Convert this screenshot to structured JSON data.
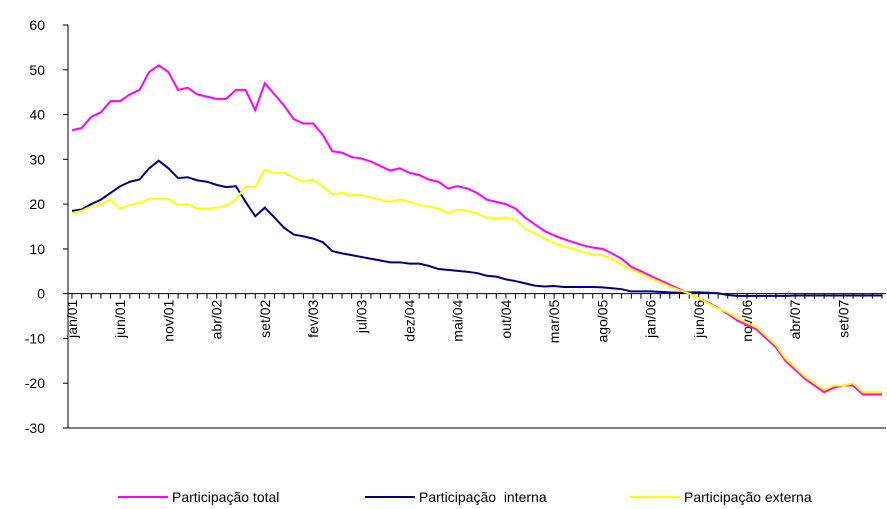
{
  "chart_data": {
    "type": "line",
    "categories": [
      "jan/01",
      null,
      null,
      null,
      null,
      "jun/01",
      null,
      null,
      null,
      null,
      "nov/01",
      null,
      null,
      null,
      null,
      "abr/02",
      null,
      null,
      null,
      null,
      "set/02",
      null,
      null,
      null,
      null,
      "fev/03",
      null,
      null,
      null,
      null,
      "jul/03",
      null,
      null,
      null,
      null,
      "dez/04",
      null,
      null,
      null,
      null,
      "mai/04",
      null,
      null,
      null,
      null,
      "out/04",
      null,
      null,
      null,
      null,
      "mar/05",
      null,
      null,
      null,
      null,
      "ago/05",
      null,
      null,
      null,
      null,
      "jan/06",
      null,
      null,
      null,
      null,
      "jun/06",
      null,
      null,
      null,
      null,
      "nov/06",
      null,
      null,
      null,
      null,
      "abr/07",
      null,
      null,
      null,
      null,
      "set/07",
      null,
      null,
      null,
      null
    ],
    "series": [
      {
        "name": "Participação total",
        "color": "#ff00ff",
        "values": [
          36.5,
          37,
          39.5,
          40.5,
          43,
          43,
          44.5,
          45.5,
          49.5,
          51,
          49.5,
          45.5,
          46,
          44.5,
          44,
          43.5,
          43.5,
          45.5,
          45.5,
          41,
          47,
          44.5,
          42,
          39,
          38,
          38,
          35.5,
          31.8,
          31.5,
          30.5,
          30.2,
          29.5,
          28.5,
          27.5,
          28,
          27,
          26.5,
          25.5,
          25,
          23.5,
          24,
          23.5,
          22.5,
          21,
          20.5,
          20,
          19,
          17,
          15.5,
          14,
          13,
          12.2,
          11.5,
          10.8,
          10.3,
          10,
          9,
          7.8,
          6,
          5,
          4,
          3,
          2,
          1,
          0,
          -1,
          -2,
          -3.2,
          -4.5,
          -6,
          -7,
          -8,
          -10,
          -12,
          -15,
          -17,
          -19,
          -20.5,
          -22,
          -21,
          -20.5,
          -20.5,
          -22.5,
          -22.5,
          -22.5
        ]
      },
      {
        "name": "Participação  interna",
        "color": "#000080",
        "values": [
          18.5,
          18.8,
          20,
          21,
          22.5,
          24,
          25,
          25.5,
          28,
          29.7,
          28,
          25.8,
          26,
          25.3,
          25,
          24.3,
          23.8,
          24,
          20.5,
          17.3,
          19.2,
          17,
          14.7,
          13.2,
          12.8,
          12.3,
          11.5,
          9.5,
          9,
          8.6,
          8.2,
          7.8,
          7.4,
          7,
          7,
          6.7,
          6.7,
          6.2,
          5.5,
          5.3,
          5.1,
          4.9,
          4.6,
          4,
          3.8,
          3.2,
          2.8,
          2.3,
          1.8,
          1.6,
          1.7,
          1.5,
          1.5,
          1.5,
          1.5,
          1.4,
          1.2,
          1,
          0.5,
          0.5,
          0.5,
          0.4,
          0.3,
          0.2,
          0.3,
          0.3,
          0.2,
          0.1,
          -0.3,
          -0.5,
          -0.5,
          -0.5,
          -0.5,
          -0.5,
          -0.5,
          -0.4,
          -0.4,
          -0.4,
          -0.4,
          -0.4,
          -0.4,
          -0.4,
          -0.4,
          -0.4,
          -0.4
        ]
      },
      {
        "name": "Participação externa",
        "color": "#ffff00",
        "values": [
          18,
          18.5,
          19.5,
          20,
          21,
          19,
          19.8,
          20.3,
          21.2,
          21.2,
          21.2,
          19.8,
          20,
          19,
          19,
          19.2,
          19.7,
          21,
          24,
          23.8,
          27.7,
          27,
          27,
          26,
          25,
          25.5,
          24,
          22.2,
          22.5,
          22,
          22,
          21.5,
          21,
          20.5,
          21,
          20.5,
          19.8,
          19.5,
          19,
          18,
          18.8,
          18.5,
          18,
          17,
          16.8,
          17,
          16.5,
          14.5,
          13.5,
          12.3,
          11.3,
          10.6,
          10,
          9.3,
          8.8,
          8.6,
          7.8,
          6.5,
          5.5,
          4.5,
          3.5,
          2.6,
          1.6,
          0.8,
          0,
          -1,
          -2.2,
          -3.3,
          -4.2,
          -5.5,
          -6.5,
          -7.5,
          -9.5,
          -11.5,
          -14.5,
          -16.5,
          -18.5,
          -20,
          -21.5,
          -20.5,
          -20.5,
          -20,
          -22,
          -22,
          -22
        ]
      }
    ],
    "ylim": [
      -30,
      60
    ],
    "yticks": [
      -30,
      -20,
      -10,
      0,
      10,
      20,
      30,
      40,
      50,
      60
    ]
  }
}
